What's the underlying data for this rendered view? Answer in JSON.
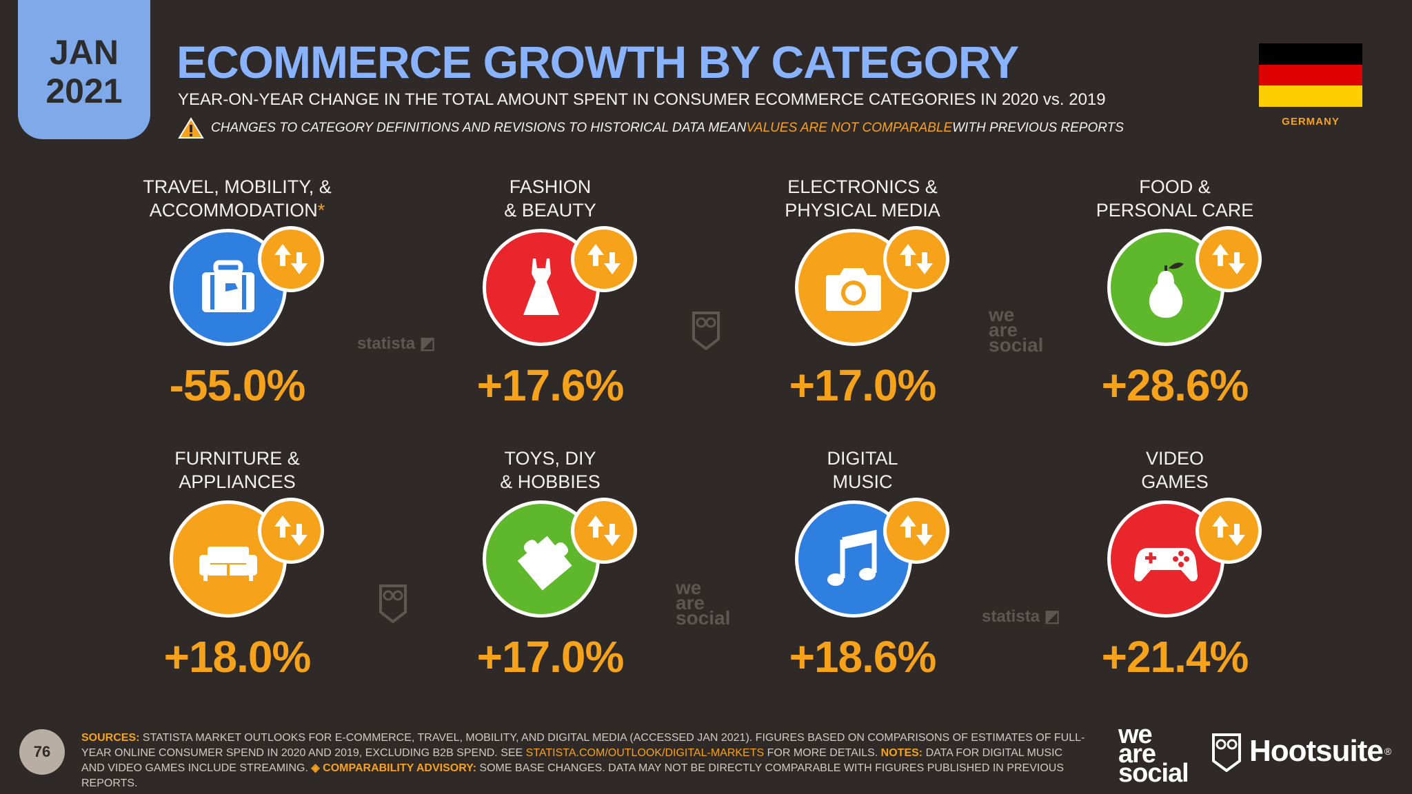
{
  "badge": {
    "month": "JAN",
    "year": "2021"
  },
  "header": {
    "title": "ECOMMERCE GROWTH BY CATEGORY",
    "subtitle": "YEAR-ON-YEAR CHANGE IN THE TOTAL AMOUNT SPENT IN CONSUMER ECOMMERCE CATEGORIES IN 2020 vs. 2019",
    "warning_pre": "CHANGES TO CATEGORY DEFINITIONS AND REVISIONS TO HISTORICAL DATA MEAN ",
    "warning_highlight": "VALUES ARE NOT COMPARABLE",
    "warning_post": " WITH PREVIOUS REPORTS"
  },
  "country": {
    "name": "GERMANY",
    "flag_colors": [
      "#000000",
      "#dd0000",
      "#ffce00"
    ]
  },
  "categories": [
    {
      "line1": "TRAVEL, MOBILITY, &",
      "line2": "ACCOMMODATION",
      "asterisk": "*",
      "value": "-55.0%",
      "icon": "suitcase-icon",
      "color": "#2f7fe0"
    },
    {
      "line1": "FASHION",
      "line2": "& BEAUTY",
      "asterisk": "",
      "value": "+17.6%",
      "icon": "dress-icon",
      "color": "#e8262b"
    },
    {
      "line1": "ELECTRONICS &",
      "line2": "PHYSICAL MEDIA",
      "asterisk": "",
      "value": "+17.0%",
      "icon": "camera-icon",
      "color": "#f7a21b"
    },
    {
      "line1": "FOOD &",
      "line2": "PERSONAL CARE",
      "asterisk": "",
      "value": "+28.6%",
      "icon": "pear-icon",
      "color": "#5fb82b"
    },
    {
      "line1": "FURNITURE &",
      "line2": "APPLIANCES",
      "asterisk": "",
      "value": "+18.0%",
      "icon": "sofa-icon",
      "color": "#f7a21b"
    },
    {
      "line1": "TOYS, DIY",
      "line2": "& HOBBIES",
      "asterisk": "",
      "value": "+17.0%",
      "icon": "puzzle-icon",
      "color": "#5fb82b"
    },
    {
      "line1": "DIGITAL",
      "line2": "MUSIC",
      "asterisk": "",
      "value": "+18.6%",
      "icon": "music-note-icon",
      "color": "#2f7fe0"
    },
    {
      "line1": "VIDEO",
      "line2": "GAMES",
      "asterisk": "",
      "value": "+21.4%",
      "icon": "gamepad-icon",
      "color": "#e8262b"
    }
  ],
  "watermarks": {
    "statista": "statista",
    "was_line1": "we",
    "was_line2": "are",
    "was_line3": "social"
  },
  "footer": {
    "page": "76",
    "sources_label": "SOURCES:",
    "sources_text": " STATISTA MARKET OUTLOOKS FOR E-COMMERCE, TRAVEL, MOBILITY, AND DIGITAL MEDIA (ACCESSED JAN 2021). FIGURES BASED ON COMPARISONS OF ESTIMATES OF FULL-YEAR ONLINE CONSUMER SPEND IN 2020 AND 2019, EXCLUDING B2B SPEND. SEE ",
    "sources_link": "STATISTA.COM/OUTLOOK/DIGITAL-MARKETS",
    "sources_text2": " FOR MORE DETAILS. ",
    "notes_label": "NOTES:",
    "notes_text": " DATA FOR DIGITAL MUSIC AND VIDEO GAMES INCLUDE STREAMING. ",
    "advisory_label": "◈ COMPARABILITY ADVISORY:",
    "advisory_text": " SOME BASE CHANGES. DATA MAY NOT BE DIRECTLY COMPARABLE WITH FIGURES PUBLISHED IN PREVIOUS REPORTS.",
    "brand_was_1": "we",
    "brand_was_2": "are",
    "brand_was_3": "social",
    "brand_hootsuite": "Hootsuite",
    "brand_reg": "®"
  }
}
